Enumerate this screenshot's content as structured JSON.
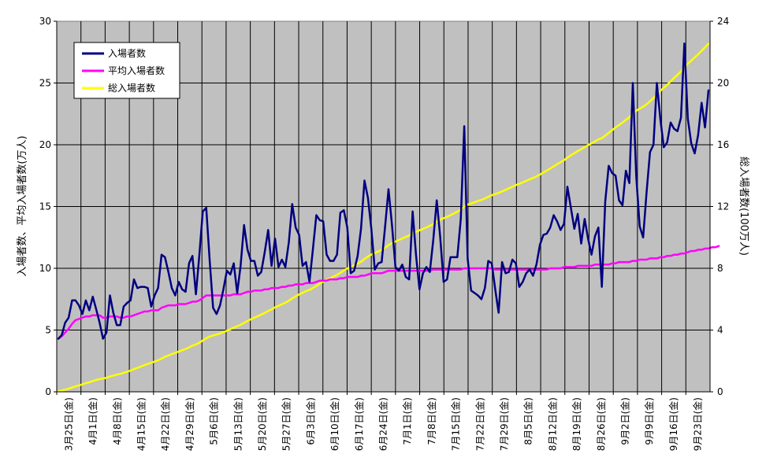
{
  "chart_data": {
    "type": "line",
    "ylabel_left": "入場者数、平均入場者数(万人)",
    "ylabel_right": "総入場者数(100万人)",
    "ylim_left": [
      0,
      30
    ],
    "ylim_right": [
      0,
      24
    ],
    "yticks_left": [
      "0",
      "5",
      "10",
      "15",
      "20",
      "25",
      "30"
    ],
    "yticks_right": [
      "0",
      "4",
      "8",
      "12",
      "16",
      "20",
      "24"
    ],
    "x_ticks": [
      "3月25日(金)",
      "4月1日(金)",
      "4月8日(金)",
      "4月15日(金)",
      "4月22日(金)",
      "4月29日(金)",
      "5月6日(金)",
      "5月13日(金)",
      "5月20日(金)",
      "5月27日(金)",
      "6月3日(金)",
      "6月10日(金)",
      "6月17日(金)",
      "6月24日(金)",
      "7月1日(金)",
      "7月8日(金)",
      "7月15日(金)",
      "7月22日(金)",
      "7月29日(金)",
      "8月5日(金)",
      "8月12日(金)",
      "8月19日(金)",
      "8月26日(金)",
      "9月2日(金)",
      "9月9日(金)",
      "9月16日(金)",
      "9月23日(金)"
    ],
    "grid": true,
    "plot_background": "#c0c0c0",
    "legend_position": "top-left",
    "series": [
      {
        "name": "入場者数",
        "axis": "left",
        "color": "#000080",
        "values": [
          4.3,
          4.6,
          5.6,
          6.0,
          7.4,
          7.4,
          7.0,
          6.3,
          7.4,
          6.6,
          7.7,
          6.7,
          5.6,
          4.3,
          4.8,
          7.8,
          6.4,
          5.4,
          5.4,
          6.9,
          7.2,
          7.4,
          9.1,
          8.4,
          8.5,
          8.5,
          8.4,
          6.9,
          7.8,
          8.4,
          11.1,
          10.9,
          9.7,
          8.4,
          7.8,
          8.9,
          8.3,
          8.1,
          10.4,
          11.0,
          7.9,
          11.1,
          14.6,
          14.9,
          10.6,
          6.8,
          6.3,
          7.0,
          8.3,
          9.8,
          9.5,
          10.4,
          8.0,
          10.2,
          13.5,
          11.5,
          10.6,
          10.6,
          9.4,
          9.7,
          11.3,
          13.1,
          10.2,
          12.4,
          10.1,
          10.7,
          10.1,
          12.1,
          15.2,
          13.3,
          12.7,
          10.2,
          10.5,
          8.9,
          11.5,
          14.3,
          13.9,
          13.8,
          11.1,
          10.6,
          10.6,
          11.1,
          14.5,
          14.7,
          13.3,
          9.6,
          9.8,
          11.0,
          13.2,
          17.1,
          15.7,
          13.2,
          9.9,
          10.4,
          10.5,
          13.4,
          16.4,
          13.5,
          10.1,
          9.8,
          10.3,
          9.3,
          9.1,
          14.6,
          11.0,
          8.3,
          9.6,
          10.1,
          9.7,
          12.3,
          15.5,
          12.6,
          8.9,
          9.1,
          10.9,
          10.9,
          10.9,
          14.0,
          21.5,
          10.8,
          8.2,
          8.0,
          7.8,
          7.5,
          8.4,
          10.6,
          10.4,
          8.3,
          6.4,
          10.5,
          9.6,
          9.7,
          10.7,
          10.4,
          8.5,
          8.9,
          9.6,
          9.9,
          9.4,
          10.3,
          11.9,
          12.7,
          12.8,
          13.3,
          14.3,
          13.8,
          13.1,
          13.6,
          16.6,
          14.9,
          13.2,
          14.4,
          12.0,
          14.0,
          12.4,
          11.1,
          12.6,
          13.3,
          8.5,
          15.4,
          18.3,
          17.7,
          17.5,
          15.5,
          15.1,
          17.9,
          16.9,
          25.0,
          17.5,
          13.4,
          12.5,
          16.1,
          19.4,
          20.0,
          25.0,
          22.1,
          19.8,
          20.2,
          21.8,
          21.3,
          21.1,
          22.2,
          28.2,
          22.1,
          20.1,
          19.3,
          20.8,
          23.4,
          21.4,
          24.4
        ]
      },
      {
        "name": "平均入場者数",
        "axis": "left",
        "color": "#ff00ff",
        "values": [
          4.3,
          4.5,
          4.8,
          5.1,
          5.5,
          5.8,
          5.9,
          6.0,
          6.1,
          6.1,
          6.2,
          6.2,
          6.2,
          6.0,
          6.0,
          6.1,
          6.1,
          6.1,
          6.0,
          6.0,
          6.1,
          6.1,
          6.2,
          6.3,
          6.4,
          6.5,
          6.5,
          6.6,
          6.6,
          6.6,
          6.8,
          6.9,
          7.0,
          7.0,
          7.0,
          7.1,
          7.1,
          7.1,
          7.2,
          7.3,
          7.3,
          7.4,
          7.6,
          7.8,
          7.8,
          7.8,
          7.8,
          7.8,
          7.8,
          7.8,
          7.8,
          7.9,
          7.9,
          7.9,
          8.0,
          8.1,
          8.1,
          8.2,
          8.2,
          8.2,
          8.3,
          8.3,
          8.4,
          8.4,
          8.4,
          8.5,
          8.5,
          8.6,
          8.6,
          8.7,
          8.7,
          8.7,
          8.8,
          8.8,
          8.8,
          8.9,
          9.0,
          9.0,
          9.0,
          9.1,
          9.1,
          9.1,
          9.2,
          9.2,
          9.3,
          9.3,
          9.3,
          9.3,
          9.4,
          9.4,
          9.5,
          9.6,
          9.6,
          9.6,
          9.6,
          9.7,
          9.8,
          9.8,
          9.8,
          9.8,
          9.8,
          9.8,
          9.8,
          9.8,
          9.8,
          9.8,
          9.8,
          9.8,
          9.8,
          9.9,
          9.9,
          9.9,
          9.9,
          9.9,
          9.9,
          9.9,
          9.9,
          9.9,
          10.0,
          10.0,
          10.0,
          10.0,
          10.0,
          10.0,
          10.0,
          10.0,
          10.0,
          9.9,
          9.9,
          9.9,
          9.9,
          9.9,
          9.9,
          9.9,
          9.9,
          9.9,
          9.9,
          9.9,
          9.9,
          9.9,
          9.9,
          9.9,
          9.9,
          10.0,
          10.0,
          10.0,
          10.0,
          10.1,
          10.1,
          10.1,
          10.1,
          10.2,
          10.2,
          10.2,
          10.2,
          10.2,
          10.3,
          10.3,
          10.3,
          10.3,
          10.3,
          10.4,
          10.4,
          10.5,
          10.5,
          10.5,
          10.5,
          10.6,
          10.6,
          10.7,
          10.7,
          10.7,
          10.8,
          10.8,
          10.8,
          10.9,
          10.9,
          11.0,
          11.0,
          11.1,
          11.1,
          11.2,
          11.2,
          11.3,
          11.4,
          11.4,
          11.5,
          11.5,
          11.6,
          11.6,
          11.7,
          11.7,
          11.8
        ]
      },
      {
        "name": "総入場者数",
        "axis": "right",
        "color": "#ffff00",
        "values": [
          0.04,
          0.09,
          0.14,
          0.2,
          0.28,
          0.35,
          0.42,
          0.48,
          0.56,
          0.62,
          0.7,
          0.77,
          0.82,
          0.86,
          0.91,
          0.99,
          1.05,
          1.11,
          1.16,
          1.23,
          1.3,
          1.38,
          1.47,
          1.55,
          1.64,
          1.72,
          1.81,
          1.88,
          1.96,
          2.04,
          2.15,
          2.26,
          2.36,
          2.44,
          2.52,
          2.61,
          2.69,
          2.77,
          2.88,
          2.99,
          3.07,
          3.18,
          3.32,
          3.47,
          3.58,
          3.65,
          3.71,
          3.78,
          3.86,
          3.96,
          4.05,
          4.16,
          4.24,
          4.34,
          4.47,
          4.59,
          4.7,
          4.8,
          4.9,
          5.0,
          5.11,
          5.24,
          5.34,
          5.47,
          5.57,
          5.67,
          5.77,
          5.9,
          6.05,
          6.18,
          6.31,
          6.41,
          6.52,
          6.6,
          6.72,
          6.86,
          7.0,
          7.14,
          7.25,
          7.35,
          7.46,
          7.57,
          7.71,
          7.86,
          7.99,
          8.09,
          8.19,
          8.3,
          8.43,
          8.6,
          8.76,
          8.89,
          8.99,
          9.09,
          9.2,
          9.33,
          9.5,
          9.63,
          9.73,
          9.83,
          9.93,
          10.03,
          10.12,
          10.26,
          10.37,
          10.46,
          10.55,
          10.65,
          10.75,
          10.87,
          11.03,
          11.15,
          11.24,
          11.33,
          11.44,
          11.55,
          11.66,
          11.8,
          12.01,
          12.12,
          12.2,
          12.28,
          12.36,
          12.43,
          12.52,
          12.63,
          12.73,
          12.81,
          12.88,
          12.98,
          13.08,
          13.18,
          13.28,
          13.39,
          13.47,
          13.56,
          13.66,
          13.76,
          13.85,
          13.95,
          14.07,
          14.2,
          14.33,
          14.46,
          14.6,
          14.74,
          14.87,
          15.0,
          15.17,
          15.32,
          15.45,
          15.59,
          15.71,
          15.85,
          15.98,
          16.09,
          16.21,
          16.35,
          16.43,
          16.59,
          16.77,
          16.95,
          17.12,
          17.28,
          17.43,
          17.61,
          17.78,
          18.03,
          18.2,
          18.34,
          18.46,
          18.62,
          18.82,
          19.02,
          19.27,
          19.49,
          19.69,
          19.89,
          20.11,
          20.32,
          20.53,
          20.75,
          21.03,
          21.25,
          21.45,
          21.65,
          21.86,
          22.09,
          22.31,
          22.55
        ]
      }
    ]
  }
}
